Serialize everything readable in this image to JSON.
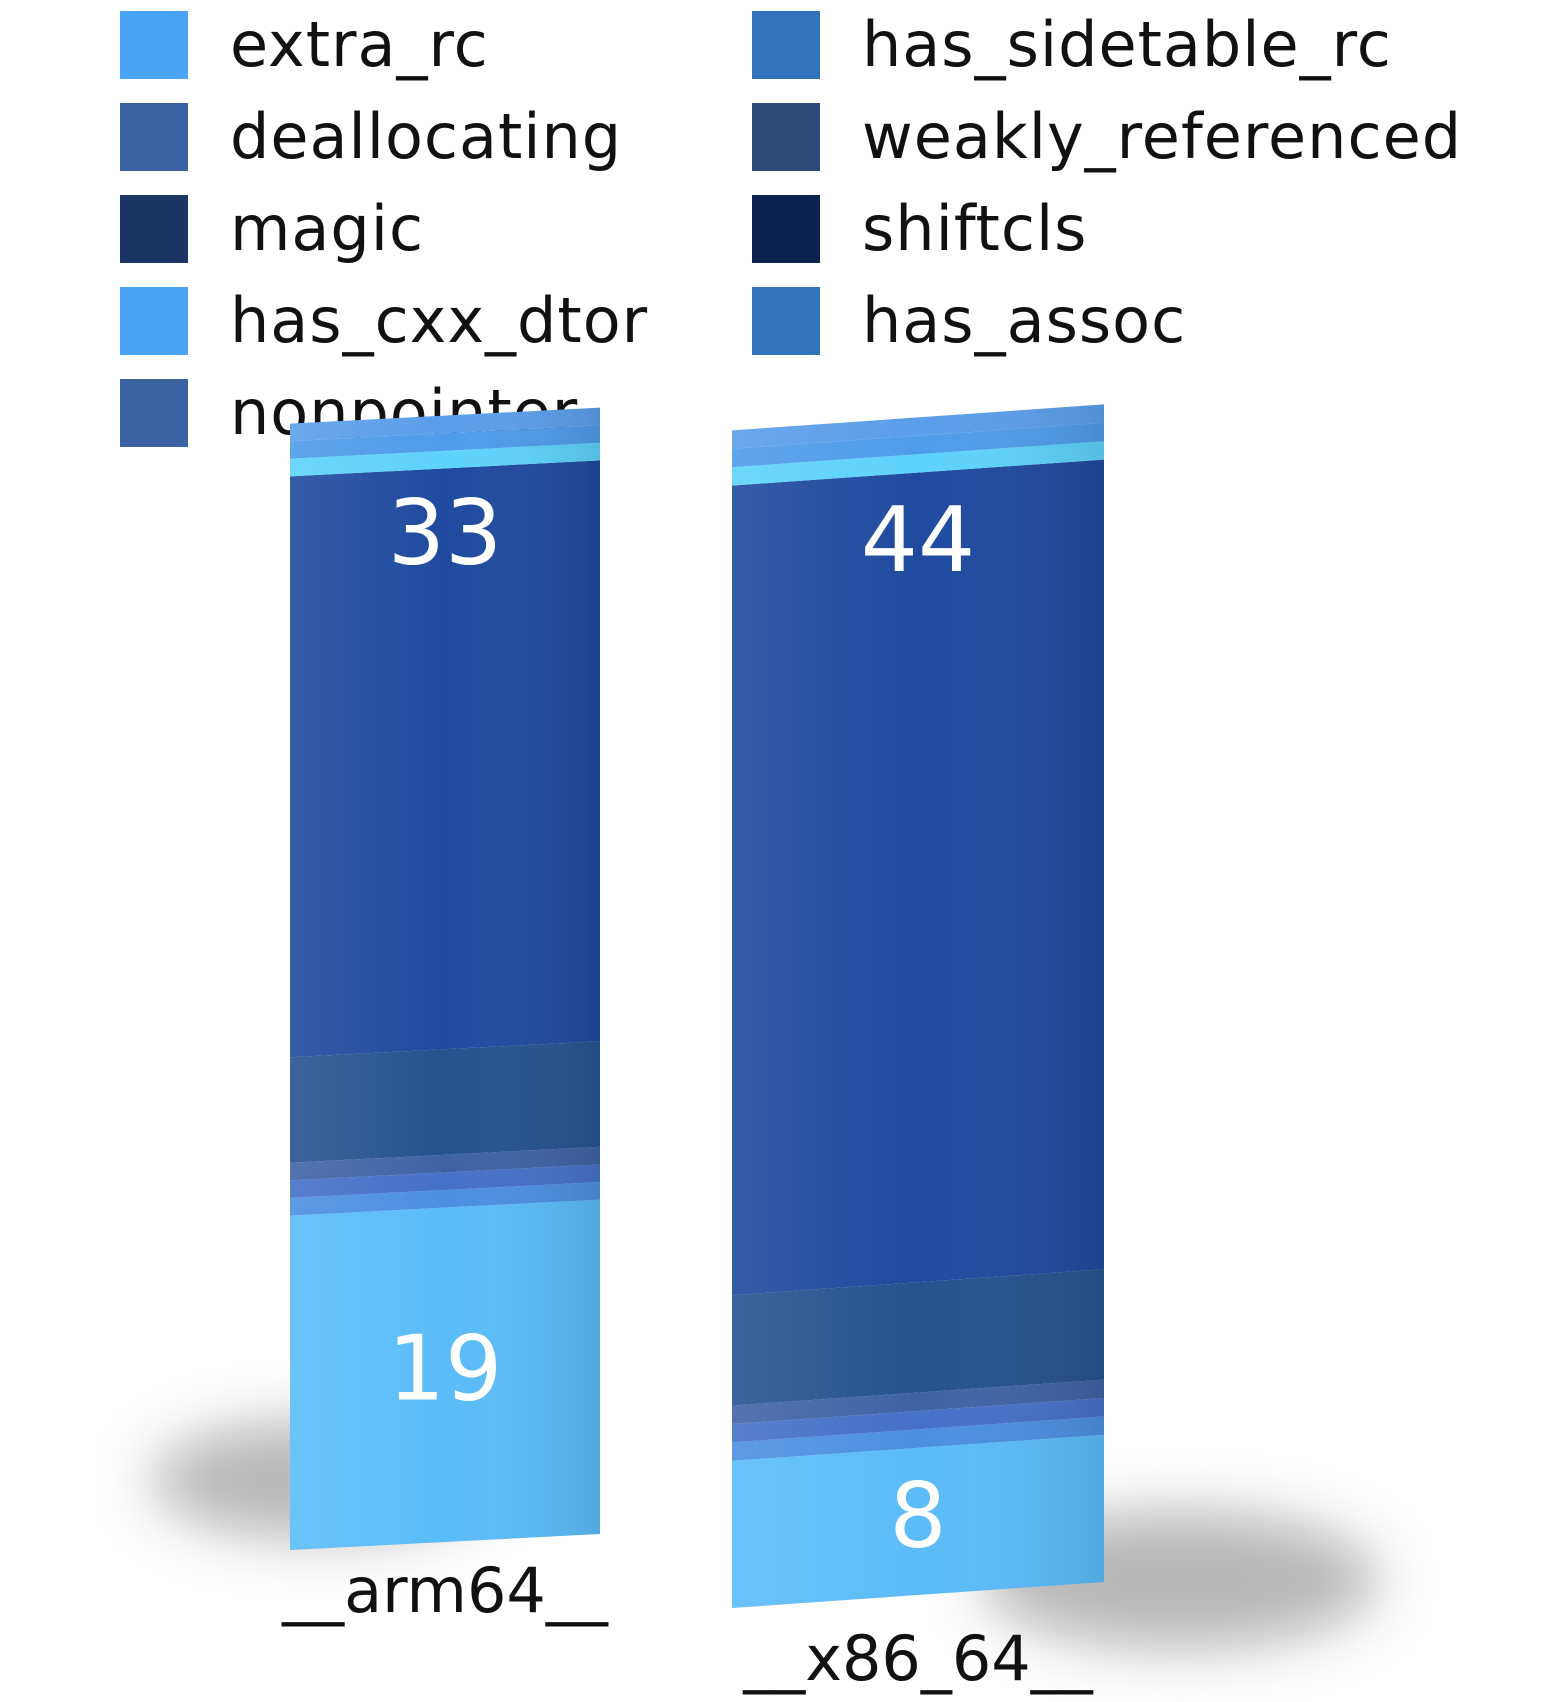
{
  "legend": {
    "items": [
      {
        "label": "extra_rc",
        "color": "#4aa3f7"
      },
      {
        "label": "has_sidetable_rc",
        "color": "#3274ba"
      },
      {
        "label": "deallocating",
        "color": "#3b62a3"
      },
      {
        "label": "weakly_referenced",
        "color": "#2d4b78"
      },
      {
        "label": "magic",
        "color": "#1b3565"
      },
      {
        "label": "shiftcls",
        "color": "#0c2350"
      },
      {
        "label": "has_cxx_dtor",
        "color": "#4aa3f7"
      },
      {
        "label": "has_assoc",
        "color": "#3274ba"
      },
      {
        "label": "nonpointer",
        "color": "#3b62a3"
      }
    ]
  },
  "chart_data": {
    "type": "bar",
    "stacked": true,
    "categories": [
      "__arm64__",
      "__x86_64__"
    ],
    "series": [
      {
        "name": "extra_rc",
        "values": [
          19,
          8
        ],
        "value_labels": [
          "19",
          "8"
        ],
        "color": "#5bbcf8"
      },
      {
        "name": "has_sidetable_rc",
        "values": [
          1,
          1
        ],
        "color": "#4c8fe0"
      },
      {
        "name": "deallocating",
        "values": [
          1,
          1
        ],
        "color": "#4571c7"
      },
      {
        "name": "weakly_referenced",
        "values": [
          1,
          1
        ],
        "color": "#3e63a5"
      },
      {
        "name": "magic",
        "values": [
          6,
          6
        ],
        "color": "#26548f"
      },
      {
        "name": "shiftcls",
        "values": [
          33,
          44
        ],
        "value_labels": [
          "33",
          "44"
        ],
        "color": "#1f4a9e"
      },
      {
        "name": "has_cxx_dtor",
        "values": [
          1,
          1
        ],
        "color": "#5ed2fb"
      },
      {
        "name": "has_assoc",
        "values": [
          1,
          1
        ],
        "color": "#4f9ce9"
      },
      {
        "name": "nonpointer",
        "values": [
          1,
          1
        ],
        "color": "#5b9ee9"
      }
    ],
    "title": "",
    "xlabel": "",
    "ylabel": "",
    "ylim": [
      0,
      64
    ],
    "grid": false,
    "legend_position": "top"
  }
}
